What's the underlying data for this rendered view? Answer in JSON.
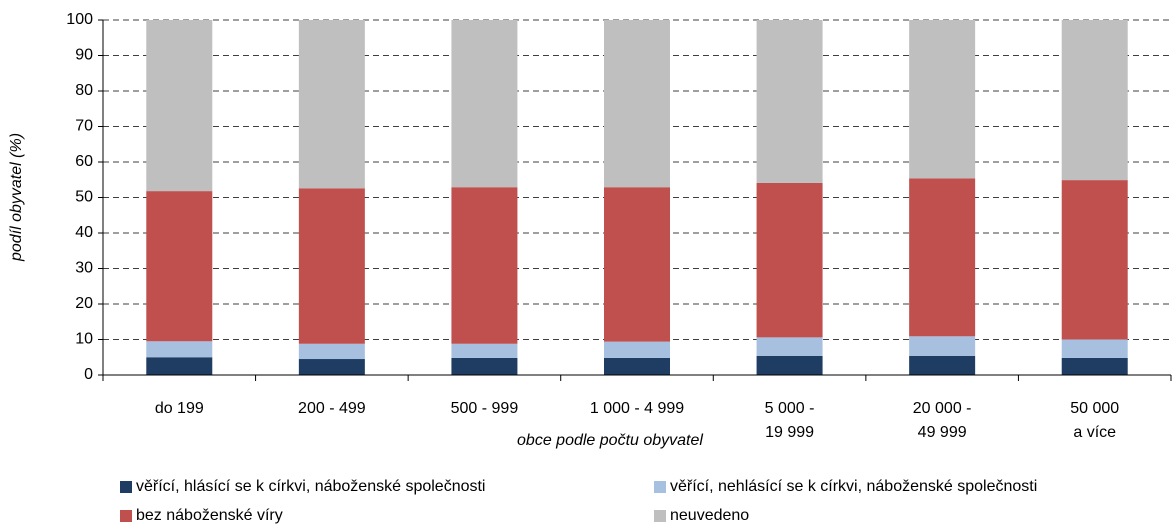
{
  "chart_data": {
    "type": "stacked_bar",
    "x_label": "obce podle počtu obyvatel",
    "y_label": "podíl obyvatel (%)",
    "categories": [
      "do 199",
      "200 - 499",
      "500 - 999",
      "1 000 - 4 999",
      "5 000 -\n19 999",
      "20 000 -\n49 999",
      "50 000\na více"
    ],
    "series": [
      {
        "name": "věřící, hlásící se k církvi, náboženské společnosti",
        "color": "#1f3d63",
        "values": [
          5,
          4.5,
          4.8,
          4.8,
          5.4,
          5.4,
          4.8
        ]
      },
      {
        "name": "věřící, nehlásící se k církvi, náboženské společnosti",
        "color": "#a8c0df",
        "values": [
          4.5,
          4.3,
          4,
          4.6,
          5.2,
          5.5,
          5.2
        ]
      },
      {
        "name": "bez náboženské víry",
        "color": "#c0504d",
        "values": [
          42.3,
          43.8,
          44.1,
          43.5,
          43.5,
          44.5,
          44.9
        ]
      },
      {
        "name": "neuvedeno",
        "color": "#bfbfbf",
        "values": [
          48.2,
          47.4,
          47.1,
          47.1,
          45.9,
          44.6,
          45.1
        ]
      }
    ],
    "ylim": [
      0,
      100
    ],
    "yticks": [
      0,
      10,
      20,
      30,
      40,
      50,
      60,
      70,
      80,
      90,
      100
    ],
    "grid": true,
    "legend": "bottom"
  }
}
